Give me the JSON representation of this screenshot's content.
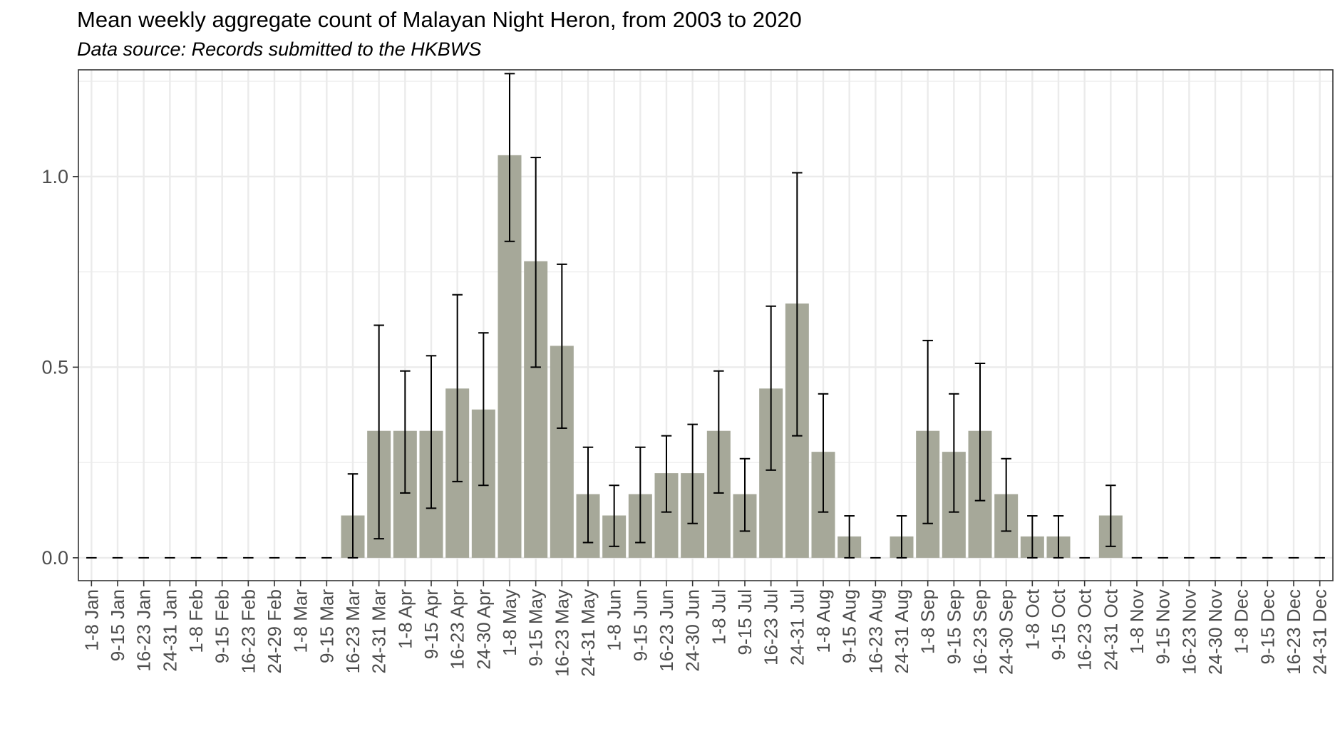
{
  "title": "Mean weekly aggregate count of Malayan Night Heron, from 2003 to 2020",
  "subtitle": "Data source: Records submitted to the HKBWS",
  "colors": {
    "bar": "#a6a899",
    "error_bar": "#000000",
    "grid": "#ebebeb",
    "panel_border": "#333333",
    "axis_text": "#4d4d4d"
  },
  "chart_data": {
    "type": "bar",
    "title": "Mean weekly aggregate count of Malayan Night Heron, from 2003 to 2020",
    "subtitle": "Data source: Records submitted to the HKBWS",
    "xlabel": "",
    "ylabel": "",
    "ylim": [
      -0.06,
      1.28
    ],
    "yticks": [
      0.0,
      0.5,
      1.0
    ],
    "ytick_labels": [
      "0.0",
      "0.5",
      "1.0"
    ],
    "grid": true,
    "legend": "none",
    "categories": [
      "1-8 Jan",
      "9-15 Jan",
      "16-23 Jan",
      "24-31 Jan",
      "1-8 Feb",
      "9-15 Feb",
      "16-23 Feb",
      "24-29 Feb",
      "1-8 Mar",
      "9-15 Mar",
      "16-23 Mar",
      "24-31 Mar",
      "1-8 Apr",
      "9-15 Apr",
      "16-23 Apr",
      "24-30 Apr",
      "1-8 May",
      "9-15 May",
      "16-23 May",
      "24-31 May",
      "1-8 Jun",
      "9-15 Jun",
      "16-23 Jun",
      "24-30 Jun",
      "1-8 Jul",
      "9-15 Jul",
      "16-23 Jul",
      "24-31 Jul",
      "1-8 Aug",
      "9-15 Aug",
      "16-23 Aug",
      "24-31 Aug",
      "1-8 Sep",
      "9-15 Sep",
      "16-23 Sep",
      "24-30 Sep",
      "1-8 Oct",
      "9-15 Oct",
      "16-23 Oct",
      "24-31 Oct",
      "1-8 Nov",
      "9-15 Nov",
      "16-23 Nov",
      "24-30 Nov",
      "1-8 Dec",
      "9-15 Dec",
      "16-23 Dec",
      "24-31 Dec"
    ],
    "values": [
      0,
      0,
      0,
      0,
      0,
      0,
      0,
      0,
      0,
      0,
      0.111,
      0.333,
      0.333,
      0.333,
      0.444,
      0.389,
      1.056,
      0.778,
      0.556,
      0.167,
      0.111,
      0.167,
      0.222,
      0.222,
      0.333,
      0.167,
      0.444,
      0.667,
      0.278,
      0.056,
      0,
      0.056,
      0.333,
      0.278,
      0.333,
      0.167,
      0.056,
      0.056,
      0,
      0.111,
      0,
      0,
      0,
      0,
      0,
      0,
      0,
      0
    ],
    "error_low": [
      0,
      0,
      0,
      0,
      0,
      0,
      0,
      0,
      0,
      0,
      0,
      0.05,
      0.17,
      0.13,
      0.2,
      0.19,
      0.83,
      0.5,
      0.34,
      0.04,
      0.03,
      0.04,
      0.12,
      0.09,
      0.17,
      0.07,
      0.23,
      0.32,
      0.12,
      0,
      0,
      0,
      0.09,
      0.12,
      0.15,
      0.07,
      0,
      0,
      0,
      0.03,
      0,
      0,
      0,
      0,
      0,
      0,
      0,
      0
    ],
    "error_high": [
      0,
      0,
      0,
      0,
      0,
      0,
      0,
      0,
      0,
      0,
      0.22,
      0.61,
      0.49,
      0.53,
      0.69,
      0.59,
      1.27,
      1.05,
      0.77,
      0.29,
      0.19,
      0.29,
      0.32,
      0.35,
      0.49,
      0.26,
      0.66,
      1.01,
      0.43,
      0.11,
      0,
      0.11,
      0.57,
      0.43,
      0.51,
      0.26,
      0.11,
      0.11,
      0,
      0.19,
      0,
      0,
      0,
      0,
      0,
      0,
      0,
      0
    ]
  }
}
